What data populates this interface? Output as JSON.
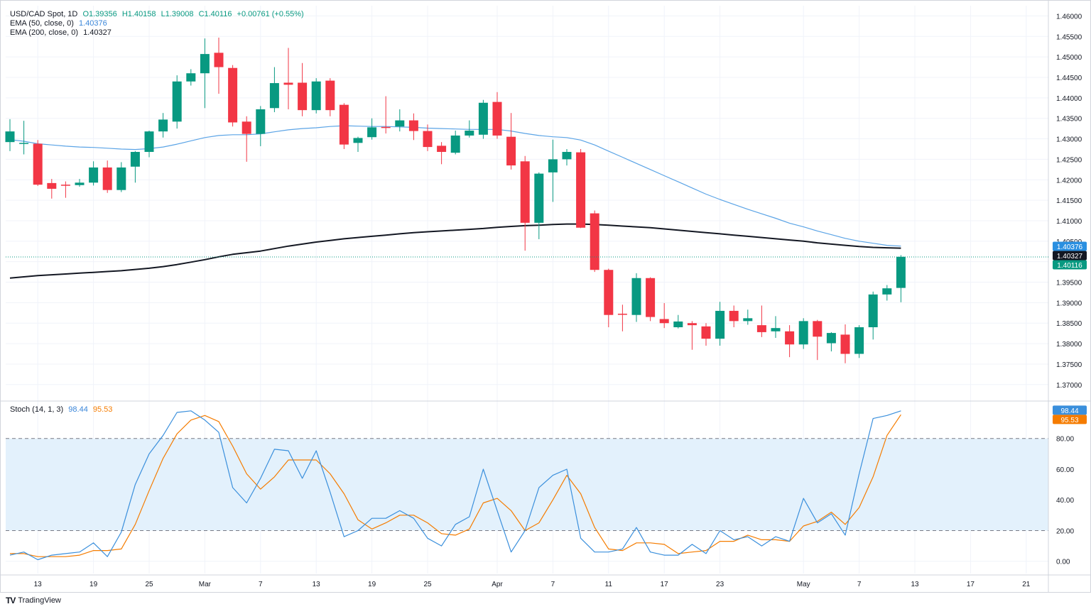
{
  "header": {
    "symbol": "USD/CAD Spot, 1D",
    "open": "O1.39356",
    "high": "H1.40158",
    "low": "L1.39008",
    "close": "C1.40116",
    "change": "+0.00761 (+0.55%)",
    "ema50_label": "EMA (50, close, 0)",
    "ema50_value": "1.40376",
    "ema200_label": "EMA (200, close, 0)",
    "ema200_value": "1.40327",
    "stoch_label": "Stoch (14, 1, 3)",
    "stoch_k_value": "98.44",
    "stoch_d_value": "95.53"
  },
  "branding": {
    "text": "TradingView",
    "mark": "TV"
  },
  "colors": {
    "up": "#089981",
    "down": "#f23645",
    "ema50": "#5ba4e6",
    "ema200": "#131722",
    "stoch_k": "#3a8fdc",
    "stoch_d": "#f57c00",
    "band_fill": "#e3f1fc",
    "grid": "#f0f3fa",
    "axis_text": "#131722"
  },
  "chart_data": [
    {
      "type": "candlestick",
      "title": "USD/CAD Spot, 1D",
      "ylim": [
        1.3665,
        1.4625
      ],
      "yticks": [
        "1.46000",
        "1.45500",
        "1.45000",
        "1.44500",
        "1.44000",
        "1.43500",
        "1.43000",
        "1.42500",
        "1.42000",
        "1.41500",
        "1.41000",
        "1.40500",
        "1.40000",
        "1.39500",
        "1.39000",
        "1.38500",
        "1.38000",
        "1.37500",
        "1.37000"
      ],
      "ytick_values": [
        1.46,
        1.455,
        1.45,
        1.445,
        1.44,
        1.435,
        1.43,
        1.425,
        1.42,
        1.415,
        1.41,
        1.405,
        1.4,
        1.395,
        1.39,
        1.385,
        1.38,
        1.375,
        1.37
      ],
      "x_ticks": [
        {
          "label": "13",
          "index": 2
        },
        {
          "label": "19",
          "index": 6
        },
        {
          "label": "25",
          "index": 10
        },
        {
          "label": "Mar",
          "index": 14
        },
        {
          "label": "7",
          "index": 18
        },
        {
          "label": "13",
          "index": 22
        },
        {
          "label": "19",
          "index": 26
        },
        {
          "label": "25",
          "index": 30
        },
        {
          "label": "Apr",
          "index": 35
        },
        {
          "label": "7",
          "index": 39
        },
        {
          "label": "11",
          "index": 43
        },
        {
          "label": "17",
          "index": 47
        },
        {
          "label": "23",
          "index": 51
        },
        {
          "label": "May",
          "index": 57
        },
        {
          "label": "7",
          "index": 61
        },
        {
          "label": "13",
          "index": 65
        },
        {
          "label": "17",
          "index": 69
        },
        {
          "label": "21",
          "index": 73
        }
      ],
      "candles": [
        {
          "o": 1.4292,
          "h": 1.4348,
          "l": 1.427,
          "c": 1.4318
        },
        {
          "o": 1.4289,
          "h": 1.4344,
          "l": 1.4262,
          "c": 1.429
        },
        {
          "o": 1.4288,
          "h": 1.4297,
          "l": 1.4185,
          "c": 1.4188
        },
        {
          "o": 1.4192,
          "h": 1.4202,
          "l": 1.4154,
          "c": 1.4178
        },
        {
          "o": 1.4188,
          "h": 1.4196,
          "l": 1.4156,
          "c": 1.4187
        },
        {
          "o": 1.4187,
          "h": 1.4202,
          "l": 1.4183,
          "c": 1.4193
        },
        {
          "o": 1.4193,
          "h": 1.4245,
          "l": 1.4186,
          "c": 1.423
        },
        {
          "o": 1.423,
          "h": 1.4247,
          "l": 1.4168,
          "c": 1.4175
        },
        {
          "o": 1.4175,
          "h": 1.4243,
          "l": 1.417,
          "c": 1.423
        },
        {
          "o": 1.4232,
          "h": 1.427,
          "l": 1.4193,
          "c": 1.4268
        },
        {
          "o": 1.4268,
          "h": 1.432,
          "l": 1.4255,
          "c": 1.4318
        },
        {
          "o": 1.4318,
          "h": 1.4363,
          "l": 1.4303,
          "c": 1.4347
        },
        {
          "o": 1.4342,
          "h": 1.4455,
          "l": 1.4325,
          "c": 1.444
        },
        {
          "o": 1.444,
          "h": 1.447,
          "l": 1.443,
          "c": 1.446
        },
        {
          "o": 1.446,
          "h": 1.4545,
          "l": 1.4375,
          "c": 1.4507
        },
        {
          "o": 1.451,
          "h": 1.4547,
          "l": 1.441,
          "c": 1.4475
        },
        {
          "o": 1.4473,
          "h": 1.448,
          "l": 1.433,
          "c": 1.434
        },
        {
          "o": 1.4342,
          "h": 1.4355,
          "l": 1.4244,
          "c": 1.4312
        },
        {
          "o": 1.4312,
          "h": 1.438,
          "l": 1.4282,
          "c": 1.4372
        },
        {
          "o": 1.4375,
          "h": 1.4475,
          "l": 1.4365,
          "c": 1.4436
        },
        {
          "o": 1.4437,
          "h": 1.4522,
          "l": 1.4372,
          "c": 1.4432
        },
        {
          "o": 1.4437,
          "h": 1.4485,
          "l": 1.4355,
          "c": 1.437
        },
        {
          "o": 1.437,
          "h": 1.4448,
          "l": 1.4362,
          "c": 1.444
        },
        {
          "o": 1.4442,
          "h": 1.4448,
          "l": 1.4355,
          "c": 1.437
        },
        {
          "o": 1.4383,
          "h": 1.4387,
          "l": 1.4275,
          "c": 1.4286
        },
        {
          "o": 1.429,
          "h": 1.4305,
          "l": 1.4268,
          "c": 1.4302
        },
        {
          "o": 1.4304,
          "h": 1.435,
          "l": 1.4298,
          "c": 1.4328
        },
        {
          "o": 1.4329,
          "h": 1.4404,
          "l": 1.4313,
          "c": 1.4328
        },
        {
          "o": 1.433,
          "h": 1.4372,
          "l": 1.4318,
          "c": 1.4345
        },
        {
          "o": 1.4345,
          "h": 1.4362,
          "l": 1.4297,
          "c": 1.4319
        },
        {
          "o": 1.4319,
          "h": 1.4335,
          "l": 1.427,
          "c": 1.428
        },
        {
          "o": 1.4283,
          "h": 1.4292,
          "l": 1.4238,
          "c": 1.4268
        },
        {
          "o": 1.4266,
          "h": 1.432,
          "l": 1.4262,
          "c": 1.4308
        },
        {
          "o": 1.4308,
          "h": 1.4345,
          "l": 1.4303,
          "c": 1.432
        },
        {
          "o": 1.431,
          "h": 1.4395,
          "l": 1.43,
          "c": 1.4388
        },
        {
          "o": 1.439,
          "h": 1.4414,
          "l": 1.43,
          "c": 1.4308
        },
        {
          "o": 1.4305,
          "h": 1.4363,
          "l": 1.4225,
          "c": 1.4235
        },
        {
          "o": 1.4245,
          "h": 1.4258,
          "l": 1.4027,
          "c": 1.4095
        },
        {
          "o": 1.4095,
          "h": 1.4218,
          "l": 1.4055,
          "c": 1.4215
        },
        {
          "o": 1.4218,
          "h": 1.4298,
          "l": 1.4146,
          "c": 1.425
        },
        {
          "o": 1.425,
          "h": 1.4275,
          "l": 1.4235,
          "c": 1.4268
        },
        {
          "o": 1.4267,
          "h": 1.4275,
          "l": 1.4082,
          "c": 1.4083
        },
        {
          "o": 1.4118,
          "h": 1.4125,
          "l": 1.3975,
          "c": 1.398
        },
        {
          "o": 1.398,
          "h": 1.3983,
          "l": 1.384,
          "c": 1.387
        },
        {
          "o": 1.3873,
          "h": 1.3895,
          "l": 1.383,
          "c": 1.3872
        },
        {
          "o": 1.387,
          "h": 1.3972,
          "l": 1.3853,
          "c": 1.396
        },
        {
          "o": 1.396,
          "h": 1.3962,
          "l": 1.3855,
          "c": 1.3865
        },
        {
          "o": 1.386,
          "h": 1.3899,
          "l": 1.3838,
          "c": 1.385
        },
        {
          "o": 1.384,
          "h": 1.387,
          "l": 1.3837,
          "c": 1.3854
        },
        {
          "o": 1.385,
          "h": 1.3855,
          "l": 1.3785,
          "c": 1.3845
        },
        {
          "o": 1.3842,
          "h": 1.385,
          "l": 1.3795,
          "c": 1.3812
        },
        {
          "o": 1.3812,
          "h": 1.3902,
          "l": 1.3795,
          "c": 1.388
        },
        {
          "o": 1.388,
          "h": 1.3893,
          "l": 1.384,
          "c": 1.3855
        },
        {
          "o": 1.3855,
          "h": 1.3883,
          "l": 1.3846,
          "c": 1.3862
        },
        {
          "o": 1.3845,
          "h": 1.3893,
          "l": 1.3816,
          "c": 1.3828
        },
        {
          "o": 1.383,
          "h": 1.3867,
          "l": 1.3814,
          "c": 1.3838
        },
        {
          "o": 1.383,
          "h": 1.3845,
          "l": 1.3767,
          "c": 1.3798
        },
        {
          "o": 1.3798,
          "h": 1.3862,
          "l": 1.3787,
          "c": 1.3855
        },
        {
          "o": 1.3855,
          "h": 1.3858,
          "l": 1.376,
          "c": 1.3817
        },
        {
          "o": 1.3801,
          "h": 1.3828,
          "l": 1.3781,
          "c": 1.3826
        },
        {
          "o": 1.3822,
          "h": 1.3847,
          "l": 1.3752,
          "c": 1.3775
        },
        {
          "o": 1.3775,
          "h": 1.3845,
          "l": 1.3765,
          "c": 1.384
        },
        {
          "o": 1.384,
          "h": 1.3927,
          "l": 1.381,
          "c": 1.392
        },
        {
          "o": 1.392,
          "h": 1.3943,
          "l": 1.3905,
          "c": 1.3935
        },
        {
          "o": 1.3936,
          "h": 1.4016,
          "l": 1.3901,
          "c": 1.4012
        }
      ],
      "ema50": [
        1.4298,
        1.4294,
        1.4288,
        1.4285,
        1.4282,
        1.428,
        1.4279,
        1.4277,
        1.4275,
        1.4274,
        1.4276,
        1.428,
        1.4287,
        1.4295,
        1.4303,
        1.4308,
        1.431,
        1.431,
        1.4312,
        1.4317,
        1.4322,
        1.4325,
        1.4327,
        1.433,
        1.4332,
        1.4331,
        1.433,
        1.433,
        1.4329,
        1.4328,
        1.4326,
        1.4325,
        1.4324,
        1.4323,
        1.4323,
        1.4323,
        1.4319,
        1.4313,
        1.4308,
        1.4305,
        1.4303,
        1.4297,
        1.4285,
        1.427,
        1.4255,
        1.424,
        1.4225,
        1.421,
        1.4195,
        1.418,
        1.4165,
        1.4152,
        1.414,
        1.4128,
        1.4117,
        1.4106,
        1.4094,
        1.4085,
        1.4075,
        1.4066,
        1.4057,
        1.405,
        1.4045,
        1.404,
        1.4038
      ],
      "ema200": [
        1.396,
        1.3963,
        1.3966,
        1.3968,
        1.397,
        1.3972,
        1.3974,
        1.3976,
        1.3978,
        1.3981,
        1.3984,
        1.3988,
        1.3993,
        1.3999,
        1.4005,
        1.4012,
        1.4018,
        1.4022,
        1.4026,
        1.4032,
        1.4038,
        1.4043,
        1.4048,
        1.4052,
        1.4056,
        1.4059,
        1.4062,
        1.4065,
        1.4068,
        1.4071,
        1.4073,
        1.4075,
        1.4077,
        1.4079,
        1.4081,
        1.4084,
        1.4086,
        1.4088,
        1.4089,
        1.4091,
        1.4092,
        1.4092,
        1.4091,
        1.4089,
        1.4087,
        1.4085,
        1.4083,
        1.408,
        1.4077,
        1.4074,
        1.4071,
        1.4068,
        1.4065,
        1.4062,
        1.4059,
        1.4056,
        1.4053,
        1.405,
        1.4046,
        1.4043,
        1.404,
        1.4037,
        1.4035,
        1.4034,
        1.4033
      ],
      "last_price": 1.40116,
      "price_labels": [
        {
          "value": 1.40376,
          "text": "1.40376",
          "series": "ema50"
        },
        {
          "value": 1.40327,
          "text": "1.40327",
          "series": "ema200"
        },
        {
          "value": 1.40116,
          "text": "1.40116",
          "series": "close"
        }
      ]
    },
    {
      "type": "line",
      "title": "Stoch (14, 1, 3)",
      "ylim": [
        -8,
        103
      ],
      "yticks": [
        "80.00",
        "60.00",
        "40.00",
        "20.00",
        "0.00"
      ],
      "ytick_values": [
        80,
        60,
        40,
        20,
        0
      ],
      "bands": [
        20,
        80
      ],
      "series": [
        {
          "name": "%K",
          "values": [
            4,
            6,
            1,
            4,
            5,
            6,
            12,
            3,
            19,
            50,
            70,
            82,
            97,
            98,
            92,
            84,
            48,
            38,
            54,
            73,
            72,
            54,
            72,
            45,
            16,
            20,
            28,
            28,
            33,
            28,
            15,
            10,
            24,
            29,
            60,
            33,
            6,
            20,
            48,
            56,
            60,
            15,
            6,
            6,
            8,
            22,
            6,
            4,
            4,
            11,
            5,
            20,
            14,
            16,
            10,
            16,
            13,
            41,
            25,
            31,
            17,
            57,
            93,
            95,
            98
          ]
        },
        {
          "name": "%D",
          "values": [
            5,
            5,
            3,
            3,
            3,
            4,
            7,
            7,
            8,
            24,
            46,
            67,
            83,
            92,
            95,
            91,
            75,
            57,
            47,
            55,
            66,
            66,
            66,
            57,
            44,
            27,
            21,
            25,
            30,
            30,
            25,
            18,
            17,
            21,
            38,
            41,
            33,
            20,
            25,
            40,
            56,
            44,
            22,
            8,
            7,
            12,
            12,
            11,
            5,
            6,
            7,
            13,
            13,
            17,
            14,
            14,
            13,
            23,
            26,
            32,
            24,
            35,
            55,
            82,
            95.5
          ]
        }
      ],
      "price_labels": [
        {
          "value": 98.44,
          "text": "98.44",
          "series": "%K"
        },
        {
          "value": 95.53,
          "text": "95.53",
          "series": "%D"
        }
      ]
    }
  ]
}
